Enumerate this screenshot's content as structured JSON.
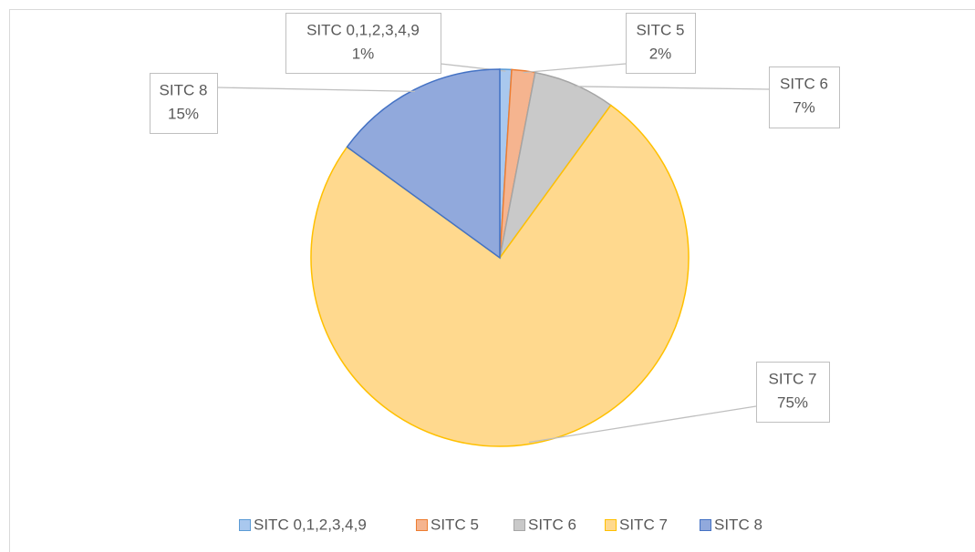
{
  "chart_data": {
    "type": "pie",
    "categories": [
      "SITC 0,1,2,3,4,9",
      "SITC 5",
      "SITC 6",
      "SITC 7",
      "SITC 8"
    ],
    "values": [
      1,
      2,
      7,
      75,
      15
    ],
    "value_labels": [
      "1%",
      "2%",
      "7%",
      "75%",
      "15%"
    ],
    "colors": [
      "#a9c8ee",
      "#f5b48f",
      "#c9c9c9",
      "#ffd98e",
      "#91a9dc"
    ],
    "edge_colors": [
      "#5b9bd5",
      "#ed7d31",
      "#a5a5a5",
      "#ffc000",
      "#4472c4"
    ],
    "legend": "bottom"
  }
}
